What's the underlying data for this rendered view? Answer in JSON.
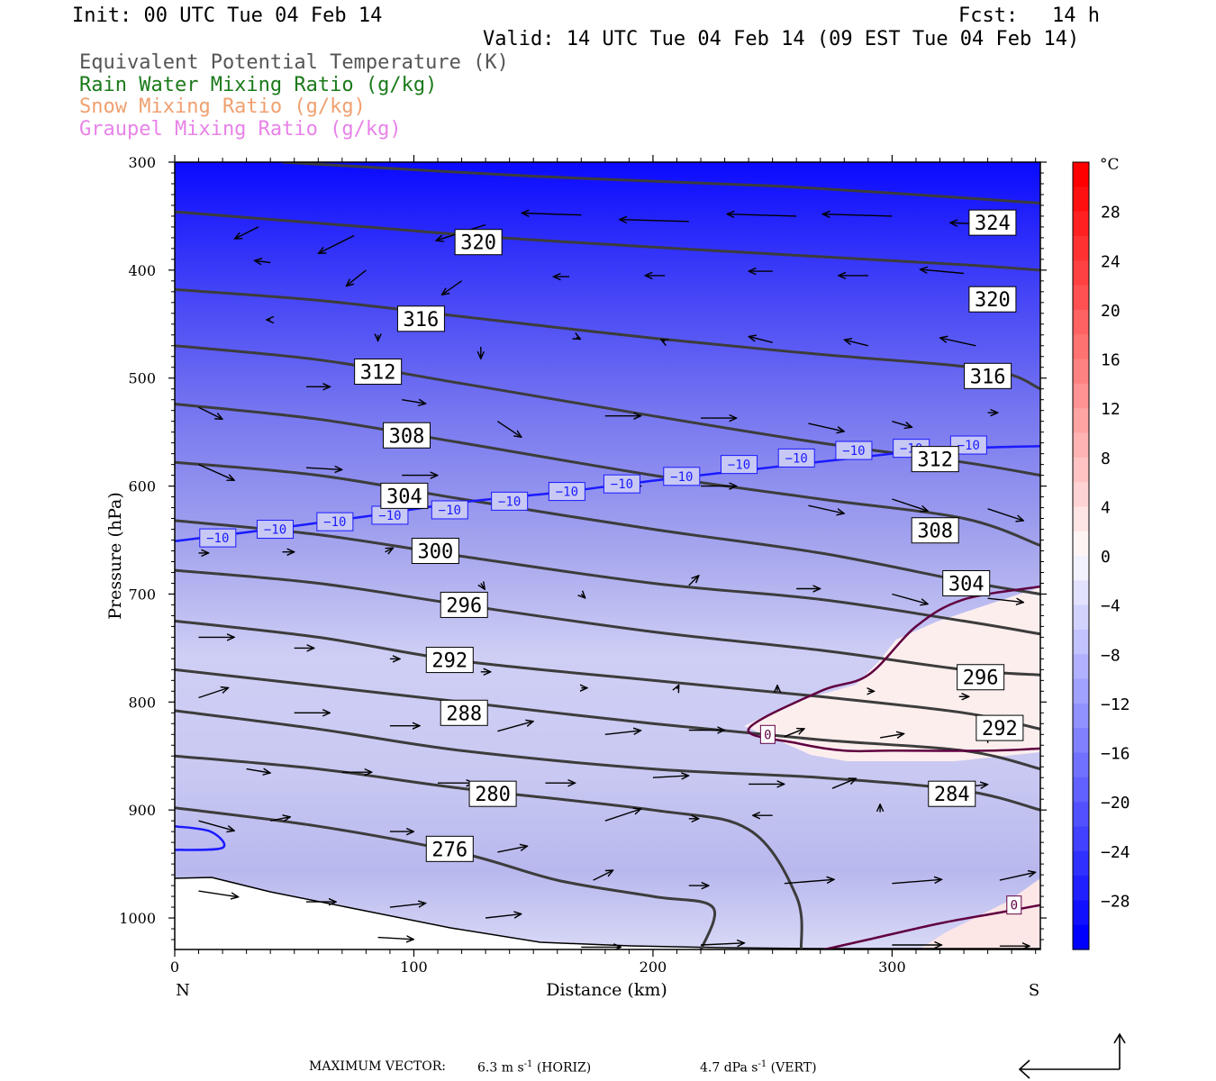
{
  "header": {
    "init": "Init: 00 UTC Tue 04 Feb 14",
    "fcst_label": "Fcst:",
    "fcst_value": "14 h",
    "valid": "Valid: 14 UTC Tue 04 Feb 14 (09 EST Tue 04 Feb 14)",
    "fields": [
      {
        "label": "Equivalent Potential Temperature (K)",
        "color": "#555555"
      },
      {
        "label": "Rain Water Mixing Ratio (g/kg)",
        "color": "#1a7a1a"
      },
      {
        "label": "Snow Mixing Ratio (g/kg)",
        "color": "#f0a070"
      },
      {
        "label": "Graupel Mixing Ratio (g/kg)",
        "color": "#e882e8"
      }
    ]
  },
  "chart_data": {
    "type": "cross-section",
    "xlabel": "Distance (km)",
    "ylabel": "Pressure (hPa)",
    "x_ticks": [
      0,
      100,
      200,
      300
    ],
    "x_end_labels": {
      "left": "N",
      "right": "S"
    },
    "xlim": [
      0,
      362
    ],
    "y_ticks": [
      300,
      400,
      500,
      600,
      700,
      800,
      900,
      1000
    ],
    "ylim": [
      1030,
      300
    ],
    "colorbar": {
      "unit": "°C",
      "tick_labels": [
        28,
        24,
        20,
        16,
        12,
        8,
        4,
        0,
        -4,
        -8,
        -12,
        -16,
        -20,
        -24,
        -28
      ],
      "range": [
        -32,
        32
      ],
      "cold_color": "#0000ff",
      "warm_color": "#ff0000"
    },
    "theta_e_contours": [
      {
        "value": 324,
        "points": [
          [
            45,
            300
          ],
          [
            150,
            313
          ],
          [
            250,
            322
          ],
          [
            330,
            333
          ],
          [
            362,
            338
          ]
        ]
      },
      {
        "value": 320,
        "points": [
          [
            0,
            346
          ],
          [
            80,
            360
          ],
          [
            150,
            372
          ],
          [
            250,
            385
          ],
          [
            330,
            395
          ],
          [
            362,
            400
          ]
        ]
      },
      {
        "value": 316,
        "points": [
          [
            0,
            418
          ],
          [
            60,
            428
          ],
          [
            120,
            443
          ],
          [
            200,
            463
          ],
          [
            270,
            478
          ],
          [
            340,
            492
          ],
          [
            362,
            510
          ]
        ]
      },
      {
        "value": 312,
        "points": [
          [
            0,
            470
          ],
          [
            60,
            483
          ],
          [
            120,
            505
          ],
          [
            200,
            535
          ],
          [
            270,
            560
          ],
          [
            330,
            578
          ],
          [
            362,
            590
          ]
        ]
      },
      {
        "value": 308,
        "points": [
          [
            0,
            524
          ],
          [
            60,
            538
          ],
          [
            120,
            560
          ],
          [
            200,
            590
          ],
          [
            270,
            612
          ],
          [
            330,
            630
          ],
          [
            362,
            655
          ]
        ]
      },
      {
        "value": 304,
        "points": [
          [
            0,
            578
          ],
          [
            60,
            590
          ],
          [
            120,
            612
          ],
          [
            200,
            640
          ],
          [
            270,
            662
          ],
          [
            330,
            688
          ],
          [
            362,
            700
          ]
        ]
      },
      {
        "value": 300,
        "points": [
          [
            0,
            632
          ],
          [
            60,
            645
          ],
          [
            120,
            665
          ],
          [
            200,
            690
          ],
          [
            270,
            705
          ],
          [
            330,
            725
          ],
          [
            362,
            737
          ]
        ]
      },
      {
        "value": 296,
        "points": [
          [
            0,
            678
          ],
          [
            60,
            690
          ],
          [
            120,
            710
          ],
          [
            200,
            735
          ],
          [
            270,
            752
          ],
          [
            330,
            770
          ],
          [
            362,
            775
          ]
        ]
      },
      {
        "value": 292,
        "points": [
          [
            0,
            725
          ],
          [
            60,
            740
          ],
          [
            120,
            762
          ],
          [
            200,
            780
          ],
          [
            270,
            795
          ],
          [
            330,
            810
          ],
          [
            362,
            825
          ]
        ]
      },
      {
        "value": 288,
        "points": [
          [
            0,
            770
          ],
          [
            60,
            785
          ],
          [
            120,
            800
          ],
          [
            200,
            820
          ],
          [
            270,
            835
          ],
          [
            330,
            845
          ],
          [
            362,
            862
          ]
        ]
      },
      {
        "value": 284,
        "points": [
          [
            0,
            808
          ],
          [
            60,
            825
          ],
          [
            120,
            845
          ],
          [
            200,
            862
          ],
          [
            270,
            870
          ],
          [
            330,
            882
          ],
          [
            362,
            900
          ]
        ]
      },
      {
        "value": 280,
        "points": [
          [
            0,
            850
          ],
          [
            60,
            862
          ],
          [
            120,
            880
          ],
          [
            200,
            900
          ],
          [
            240,
            918
          ],
          [
            260,
            980
          ],
          [
            262,
            1030
          ]
        ]
      },
      {
        "value": 276,
        "points": [
          [
            0,
            898
          ],
          [
            60,
            915
          ],
          [
            120,
            940
          ],
          [
            160,
            965
          ],
          [
            200,
            980
          ],
          [
            225,
            990
          ],
          [
            220,
            1030
          ]
        ]
      }
    ],
    "theta_e_labels": [
      {
        "value": 324,
        "x": 342,
        "y": 356
      },
      {
        "value": 320,
        "x": 127,
        "y": 374
      },
      {
        "value": 320,
        "x": 342,
        "y": 427
      },
      {
        "value": 316,
        "x": 103,
        "y": 445
      },
      {
        "value": 316,
        "x": 340,
        "y": 498
      },
      {
        "value": 312,
        "x": 85,
        "y": 494
      },
      {
        "value": 312,
        "x": 318,
        "y": 575
      },
      {
        "value": 308,
        "x": 97,
        "y": 553
      },
      {
        "value": 308,
        "x": 318,
        "y": 641
      },
      {
        "value": 304,
        "x": 96,
        "y": 609
      },
      {
        "value": 304,
        "x": 331,
        "y": 690
      },
      {
        "value": 300,
        "x": 109,
        "y": 660
      },
      {
        "value": 296,
        "x": 121,
        "y": 710
      },
      {
        "value": 296,
        "x": 337,
        "y": 777
      },
      {
        "value": 292,
        "x": 115,
        "y": 761
      },
      {
        "value": 292,
        "x": 345,
        "y": 824
      },
      {
        "value": 288,
        "x": 121,
        "y": 810
      },
      {
        "value": 284,
        "x": 325,
        "y": 885
      },
      {
        "value": 280,
        "x": 133,
        "y": 885
      },
      {
        "value": 276,
        "x": 115,
        "y": 936
      }
    ],
    "temperature_contours": [
      {
        "value": -10,
        "color": "#1a1aff",
        "points": [
          [
            0,
            651
          ],
          [
            40,
            640
          ],
          [
            80,
            628
          ],
          [
            120,
            615
          ],
          [
            160,
            606
          ],
          [
            200,
            595
          ],
          [
            240,
            585
          ],
          [
            280,
            575
          ],
          [
            320,
            566
          ],
          [
            362,
            563
          ]
        ]
      },
      {
        "value": -10,
        "color": "#1a1aff",
        "points": [
          [
            0,
            915
          ],
          [
            15,
            920
          ],
          [
            20,
            935
          ],
          [
            0,
            937
          ]
        ]
      },
      {
        "value": 0,
        "color": "#600040",
        "points": [
          [
            362,
            693
          ],
          [
            330,
            705
          ],
          [
            310,
            730
          ],
          [
            290,
            775
          ],
          [
            270,
            790
          ],
          [
            240,
            825
          ],
          [
            260,
            838
          ],
          [
            280,
            845
          ],
          [
            300,
            845
          ],
          [
            340,
            845
          ],
          [
            362,
            843
          ]
        ]
      },
      {
        "value": 0,
        "color": "#600040",
        "points": [
          [
            270,
            1030
          ],
          [
            290,
            1020
          ],
          [
            320,
            1005
          ],
          [
            345,
            995
          ],
          [
            362,
            988
          ]
        ]
      }
    ],
    "temperature_labels": [
      {
        "value": -10,
        "x": 18,
        "y": 648
      },
      {
        "value": -10,
        "x": 42,
        "y": 640
      },
      {
        "value": -10,
        "x": 67,
        "y": 633
      },
      {
        "value": -10,
        "x": 90,
        "y": 627
      },
      {
        "value": -10,
        "x": 115,
        "y": 622
      },
      {
        "value": -10,
        "x": 140,
        "y": 614
      },
      {
        "value": -10,
        "x": 164,
        "y": 605
      },
      {
        "value": -10,
        "x": 187,
        "y": 598
      },
      {
        "value": -10,
        "x": 212,
        "y": 591
      },
      {
        "value": -10,
        "x": 236,
        "y": 580
      },
      {
        "value": -10,
        "x": 260,
        "y": 574
      },
      {
        "value": -10,
        "x": 284,
        "y": 567
      },
      {
        "value": -10,
        "x": 308,
        "y": 565
      },
      {
        "value": -10,
        "x": 332,
        "y": 562
      },
      {
        "value": 0,
        "x": 248,
        "y": 830
      },
      {
        "value": 0,
        "x": 351,
        "y": 988
      }
    ],
    "wind_vectors": [
      [
        35,
        360,
        -0.12,
        -0.06
      ],
      [
        75,
        368,
        -0.18,
        -0.09
      ],
      [
        130,
        358,
        -0.25,
        -0.08
      ],
      [
        170,
        349,
        -0.3,
        0.01
      ],
      [
        215,
        355,
        -0.35,
        0.01
      ],
      [
        260,
        350,
        -0.35,
        0.01
      ],
      [
        300,
        350,
        -0.35,
        0.01
      ],
      [
        345,
        358,
        -0.25,
        0.01
      ],
      [
        40,
        393,
        -0.08,
        0.01
      ],
      [
        80,
        400,
        -0.1,
        -0.08
      ],
      [
        120,
        410,
        -0.1,
        -0.07
      ],
      [
        165,
        406,
        -0.08,
        0
      ],
      [
        205,
        405,
        -0.1,
        0
      ],
      [
        250,
        401,
        -0.12,
        0
      ],
      [
        290,
        405,
        -0.15,
        0
      ],
      [
        330,
        403,
        -0.22,
        0.02
      ],
      [
        40,
        446,
        -0.02,
        0
      ],
      [
        85,
        460,
        0,
        -0.03
      ],
      [
        128,
        471,
        0,
        -0.06
      ],
      [
        168,
        462,
        0.02,
        -0.01
      ],
      [
        205,
        466,
        -0.02,
        0.01
      ],
      [
        250,
        467,
        -0.12,
        0.03
      ],
      [
        290,
        470,
        -0.12,
        0.03
      ],
      [
        335,
        470,
        -0.18,
        0.04
      ],
      [
        10,
        527,
        0.12,
        -0.06
      ],
      [
        55,
        508,
        0.12,
        0
      ],
      [
        95,
        520,
        0.12,
        -0.02
      ],
      [
        135,
        540,
        0.12,
        -0.08
      ],
      [
        180,
        535,
        0.18,
        0
      ],
      [
        220,
        537,
        0.18,
        0
      ],
      [
        265,
        542,
        0.18,
        -0.04
      ],
      [
        300,
        540,
        0.1,
        -0.03
      ],
      [
        340,
        532,
        0.05,
        0
      ],
      [
        10,
        580,
        0.18,
        -0.08
      ],
      [
        55,
        583,
        0.18,
        -0.01
      ],
      [
        95,
        590,
        0.18,
        0
      ],
      [
        135,
        608,
        0.1,
        -0.03
      ],
      [
        180,
        600,
        0.18,
        0
      ],
      [
        220,
        600,
        0.18,
        0
      ],
      [
        265,
        618,
        0.18,
        -0.04
      ],
      [
        300,
        612,
        0.18,
        -0.06
      ],
      [
        340,
        621,
        0.18,
        -0.06
      ],
      [
        10,
        662,
        0.05,
        0
      ],
      [
        45,
        661,
        0.06,
        0
      ],
      [
        88,
        661,
        0.04,
        0.02
      ],
      [
        128,
        690,
        0.02,
        -0.03
      ],
      [
        170,
        700,
        0.02,
        -0.02
      ],
      [
        215,
        692,
        0.05,
        0.05
      ],
      [
        260,
        695,
        0.12,
        0
      ],
      [
        300,
        700,
        0.18,
        -0.05
      ],
      [
        340,
        704,
        0.18,
        -0.02
      ],
      [
        10,
        740,
        0.18,
        0
      ],
      [
        50,
        750,
        0.1,
        0
      ],
      [
        90,
        760,
        0.05,
        0
      ],
      [
        128,
        772,
        0.05,
        0
      ],
      [
        170,
        787,
        0.03,
        0
      ],
      [
        210,
        788,
        0.01,
        0.02
      ],
      [
        252,
        790,
        0,
        0.03
      ],
      [
        290,
        790,
        0.03,
        0
      ],
      [
        328,
        795,
        0.05,
        0
      ],
      [
        10,
        796,
        0.15,
        0.05
      ],
      [
        50,
        810,
        0.18,
        0
      ],
      [
        90,
        822,
        0.15,
        0
      ],
      [
        135,
        827,
        0.18,
        0.05
      ],
      [
        180,
        830,
        0.18,
        0.02
      ],
      [
        215,
        826,
        0.18,
        0
      ],
      [
        255,
        832,
        0.1,
        0.04
      ],
      [
        295,
        833,
        0.12,
        0.02
      ],
      [
        340,
        838,
        0,
        0.05
      ],
      [
        30,
        862,
        0.12,
        -0.02
      ],
      [
        70,
        865,
        0.15,
        0
      ],
      [
        110,
        875,
        0.18,
        0
      ],
      [
        155,
        875,
        0.15,
        0
      ],
      [
        200,
        870,
        0.18,
        0.01
      ],
      [
        240,
        876,
        0.18,
        0
      ],
      [
        275,
        880,
        0.12,
        0.05
      ],
      [
        325,
        880,
        0.18,
        0.02
      ],
      [
        10,
        910,
        0.18,
        -0.05
      ],
      [
        40,
        910,
        0.1,
        0.02
      ],
      [
        90,
        920,
        0.12,
        0
      ],
      [
        135,
        939,
        0.15,
        0.03
      ],
      [
        180,
        910,
        0.18,
        0.06
      ],
      [
        215,
        908,
        0.05,
        0
      ],
      [
        250,
        905,
        -0.1,
        0
      ],
      [
        295,
        902,
        0,
        0.04
      ],
      [
        10,
        975,
        0.2,
        -0.03
      ],
      [
        55,
        985,
        0.15,
        0
      ],
      [
        90,
        990,
        0.18,
        0.02
      ],
      [
        130,
        1000,
        0.18,
        0.02
      ],
      [
        175,
        965,
        0.1,
        0.05
      ],
      [
        215,
        970,
        0.1,
        0
      ],
      [
        255,
        968,
        0.25,
        0.02
      ],
      [
        300,
        968,
        0.25,
        0.02
      ],
      [
        345,
        965,
        0.18,
        0.04
      ],
      [
        85,
        1018,
        0.18,
        -0.01
      ],
      [
        170,
        1027,
        0.2,
        0
      ],
      [
        220,
        1025,
        0.22,
        0.01
      ],
      [
        300,
        1025,
        0.25,
        0
      ],
      [
        345,
        1026,
        0.15,
        0
      ]
    ],
    "legend_vector": {
      "horiz": 6.3,
      "vert": 4.7
    }
  },
  "footer": {
    "max_vector_label": "MAXIMUM VECTOR:",
    "horiz_value": "6.3 m s",
    "horiz_exp": "-1",
    "horiz_tag": "(HORIZ)",
    "vert_value": "4.7 dPa s",
    "vert_exp": "-1",
    "vert_tag": "(VERT)"
  }
}
